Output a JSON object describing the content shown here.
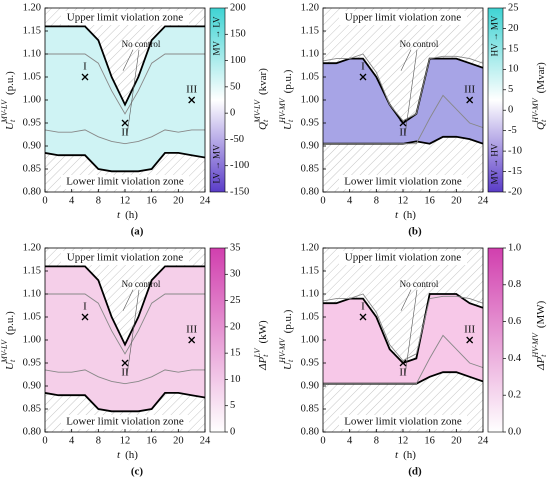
{
  "chart_data": [
    {
      "type": "line",
      "panel_label": "(a)",
      "zone_upper": "Upper limit violation zone",
      "zone_lower": "Lower limit violation zone",
      "annotation": "No control",
      "x_label": {
        "main": "t",
        "unit": "(h)"
      },
      "y_label": {
        "main": "U",
        "sub": "t",
        "sup": "MV-LV",
        "unit": "(p.u.)"
      },
      "x": [
        0,
        2,
        4,
        6,
        8,
        10,
        12,
        14,
        16,
        18,
        20,
        22,
        24
      ],
      "xlim": [
        0,
        24
      ],
      "xticks": [
        0,
        4,
        8,
        12,
        16,
        20,
        24
      ],
      "ylim": [
        0.8,
        1.2
      ],
      "yticks": [
        {
          "value": 0.8,
          "label": "0.80"
        },
        {
          "value": 0.85,
          "label": "0.85"
        },
        {
          "value": 0.9,
          "label": "0.90"
        },
        {
          "value": 0.95,
          "label": "0.95"
        },
        {
          "value": 1.0,
          "label": "1.00"
        },
        {
          "value": 1.05,
          "label": "1.05"
        },
        {
          "value": 1.1,
          "label": "1.10"
        },
        {
          "value": 1.15,
          "label": "1.15"
        },
        {
          "value": 1.2,
          "label": "1.20"
        }
      ],
      "region_color": "#bfeff0",
      "series": [
        {
          "color": "#000000",
          "width": 1.8,
          "values": [
            1.16,
            1.16,
            1.16,
            1.16,
            1.13,
            1.05,
            0.99,
            1.05,
            1.13,
            1.16,
            1.16,
            1.16,
            1.16
          ]
        },
        {
          "color": "#000000",
          "width": 1.8,
          "values": [
            0.885,
            0.88,
            0.88,
            0.88,
            0.85,
            0.845,
            0.845,
            0.845,
            0.85,
            0.885,
            0.885,
            0.88,
            0.875
          ]
        },
        {
          "color": "#888888",
          "width": 0.9,
          "values": [
            1.1,
            1.1,
            1.1,
            1.1,
            1.08,
            1.02,
            0.97,
            1.02,
            1.08,
            1.1,
            1.1,
            1.1,
            1.1
          ]
        },
        {
          "color": "#888888",
          "width": 0.9,
          "values": [
            0.935,
            0.93,
            0.93,
            0.935,
            0.92,
            0.91,
            0.905,
            0.91,
            0.92,
            0.935,
            0.93,
            0.935,
            0.935
          ]
        }
      ],
      "points": [
        {
          "label": "I",
          "x": 6,
          "y": 1.05
        },
        {
          "label": "II",
          "x": 12,
          "y": 0.95
        },
        {
          "label": "III",
          "x": 22,
          "y": 1.0
        }
      ],
      "colorbar": {
        "label": {
          "main": "Q",
          "sub": "t",
          "sup": "MV-LV",
          "unit": "(kvar)"
        },
        "clim": [
          -150,
          200
        ],
        "ticks": [
          -150,
          -100,
          -50,
          0,
          50,
          100,
          150,
          200
        ],
        "colors": [
          "#5a3cc8",
          "#ffffff",
          "#3fd3d3"
        ],
        "top_note": "MV → LV",
        "bottom_note": "LV → MV"
      }
    },
    {
      "type": "line",
      "panel_label": "(b)",
      "zone_upper": "Upper limit violation zone",
      "zone_lower": "Lower limit violation zone",
      "annotation": "No control",
      "x_label": {
        "main": "t",
        "unit": "(h)"
      },
      "y_label": {
        "main": "U",
        "sub": "t",
        "sup": "HV-MV",
        "unit": "(p.u.)"
      },
      "x": [
        0,
        2,
        4,
        6,
        8,
        10,
        12,
        14,
        16,
        18,
        20,
        22,
        24
      ],
      "xlim": [
        0,
        24
      ],
      "xticks": [
        0,
        4,
        8,
        12,
        16,
        20,
        24
      ],
      "ylim": [
        0.8,
        1.2
      ],
      "yticks": [
        {
          "value": 0.8,
          "label": "0.80"
        },
        {
          "value": 0.85,
          "label": "0.85"
        },
        {
          "value": 0.9,
          "label": "0.90"
        },
        {
          "value": 0.95,
          "label": "0.95"
        },
        {
          "value": 1.0,
          "label": "1.00"
        },
        {
          "value": 1.05,
          "label": "1.05"
        },
        {
          "value": 1.1,
          "label": "1.10"
        },
        {
          "value": 1.15,
          "label": "1.15"
        },
        {
          "value": 1.2,
          "label": "1.20"
        }
      ],
      "region_color": "#8a86de",
      "series": [
        {
          "color": "#000000",
          "width": 1.8,
          "values": [
            1.08,
            1.08,
            1.09,
            1.09,
            1.05,
            0.99,
            0.95,
            0.97,
            1.09,
            1.09,
            1.09,
            1.08,
            1.07
          ]
        },
        {
          "color": "#000000",
          "width": 1.8,
          "values": [
            0.905,
            0.905,
            0.905,
            0.905,
            0.905,
            0.905,
            0.905,
            0.91,
            0.905,
            0.92,
            0.92,
            0.915,
            0.905
          ]
        },
        {
          "color": "#888888",
          "width": 0.9,
          "values": [
            1.085,
            1.09,
            1.09,
            1.1,
            1.06,
            0.99,
            0.955,
            0.97,
            1.09,
            1.095,
            1.095,
            1.09,
            1.08
          ]
        },
        {
          "color": "#888888",
          "width": 0.9,
          "values": [
            0.905,
            0.905,
            0.905,
            0.905,
            0.905,
            0.905,
            0.905,
            0.905,
            0.96,
            1.01,
            0.98,
            0.95,
            0.94
          ]
        }
      ],
      "points": [
        {
          "label": "I",
          "x": 6,
          "y": 1.05
        },
        {
          "label": "II",
          "x": 12,
          "y": 0.95
        },
        {
          "label": "III",
          "x": 22,
          "y": 1.0
        }
      ],
      "colorbar": {
        "label": {
          "main": "Q",
          "sub": "t",
          "sup": "HV-MV",
          "unit": "(Mvar)"
        },
        "clim": [
          -20,
          25
        ],
        "ticks": [
          -20,
          -15,
          -10,
          -5,
          0,
          5,
          10,
          15,
          20,
          25
        ],
        "colors": [
          "#5a3cc8",
          "#ffffff",
          "#3fd3d3"
        ],
        "top_note": "HV → MV",
        "bottom_note": "MV → HV"
      }
    },
    {
      "type": "line",
      "panel_label": "(c)",
      "zone_upper": "Upper limit violation zone",
      "zone_lower": "Lower limit violation zone",
      "annotation": "No control",
      "x_label": {
        "main": "t",
        "unit": "(h)"
      },
      "y_label": {
        "main": "U",
        "sub": "t",
        "sup": "MV-LV",
        "unit": "(p.u.)"
      },
      "x": [
        0,
        2,
        4,
        6,
        8,
        10,
        12,
        14,
        16,
        18,
        20,
        22,
        24
      ],
      "xlim": [
        0,
        24
      ],
      "xticks": [
        0,
        4,
        8,
        12,
        16,
        20,
        24
      ],
      "ylim": [
        0.8,
        1.2
      ],
      "yticks": [
        {
          "value": 0.8,
          "label": "0.80"
        },
        {
          "value": 0.85,
          "label": "0.85"
        },
        {
          "value": 0.9,
          "label": "0.90"
        },
        {
          "value": 0.95,
          "label": "0.95"
        },
        {
          "value": 1.0,
          "label": "1.00"
        },
        {
          "value": 1.05,
          "label": "1.05"
        },
        {
          "value": 1.1,
          "label": "1.10"
        },
        {
          "value": 1.15,
          "label": "1.15"
        },
        {
          "value": 1.2,
          "label": "1.20"
        }
      ],
      "region_color": "#f2bfe2",
      "series": [
        {
          "color": "#000000",
          "width": 1.8,
          "values": [
            1.16,
            1.16,
            1.16,
            1.16,
            1.13,
            1.05,
            0.99,
            1.05,
            1.13,
            1.16,
            1.16,
            1.16,
            1.16
          ]
        },
        {
          "color": "#000000",
          "width": 1.8,
          "values": [
            0.885,
            0.88,
            0.88,
            0.88,
            0.85,
            0.845,
            0.845,
            0.845,
            0.85,
            0.885,
            0.885,
            0.88,
            0.875
          ]
        },
        {
          "color": "#888888",
          "width": 0.9,
          "values": [
            1.1,
            1.1,
            1.1,
            1.1,
            1.08,
            1.02,
            0.97,
            1.02,
            1.08,
            1.1,
            1.1,
            1.1,
            1.1
          ]
        },
        {
          "color": "#888888",
          "width": 0.9,
          "values": [
            0.935,
            0.93,
            0.93,
            0.935,
            0.92,
            0.91,
            0.905,
            0.91,
            0.92,
            0.935,
            0.93,
            0.935,
            0.935
          ]
        }
      ],
      "points": [
        {
          "label": "I",
          "x": 6,
          "y": 1.05
        },
        {
          "label": "II",
          "x": 12,
          "y": 0.95
        },
        {
          "label": "III",
          "x": 22,
          "y": 1.0
        }
      ],
      "colorbar": {
        "label": {
          "main": "ΔP",
          "sub": "t",
          "sup": "LV",
          "unit": "(kW)"
        },
        "clim": [
          0,
          35
        ],
        "ticks": [
          0,
          5,
          10,
          15,
          20,
          25,
          30,
          35
        ],
        "colors": [
          "#ffffff",
          "#d13fae"
        ]
      }
    },
    {
      "type": "line",
      "panel_label": "(d)",
      "zone_upper": "Upper limit violation zone",
      "zone_lower": "Lower limit violation zone",
      "annotation": "No control",
      "x_label": {
        "main": "t",
        "unit": "(h)"
      },
      "y_label": {
        "main": "U",
        "sub": "t",
        "sup": "HV-MV",
        "unit": "(p.u.)"
      },
      "x": [
        0,
        2,
        4,
        6,
        8,
        10,
        12,
        14,
        16,
        18,
        20,
        22,
        24
      ],
      "xlim": [
        0,
        24
      ],
      "xticks": [
        0,
        4,
        8,
        12,
        16,
        20,
        24
      ],
      "ylim": [
        0.8,
        1.2
      ],
      "yticks": [
        {
          "value": 0.8,
          "label": "0.80"
        },
        {
          "value": 0.85,
          "label": "0.85"
        },
        {
          "value": 0.9,
          "label": "0.90"
        },
        {
          "value": 0.95,
          "label": "0.95"
        },
        {
          "value": 1.0,
          "label": "1.00"
        },
        {
          "value": 1.05,
          "label": "1.05"
        },
        {
          "value": 1.1,
          "label": "1.10"
        },
        {
          "value": 1.15,
          "label": "1.15"
        },
        {
          "value": 1.2,
          "label": "1.20"
        }
      ],
      "region_color": "#f4b6e0",
      "series": [
        {
          "color": "#000000",
          "width": 1.8,
          "values": [
            1.08,
            1.08,
            1.09,
            1.09,
            1.05,
            0.98,
            0.95,
            0.96,
            1.1,
            1.1,
            1.1,
            1.08,
            1.07
          ]
        },
        {
          "color": "#000000",
          "width": 1.8,
          "values": [
            0.905,
            0.905,
            0.905,
            0.905,
            0.905,
            0.905,
            0.905,
            0.905,
            0.92,
            0.93,
            0.93,
            0.92,
            0.91
          ]
        },
        {
          "color": "#888888",
          "width": 0.9,
          "values": [
            1.085,
            1.09,
            1.09,
            1.1,
            1.06,
            0.99,
            0.955,
            0.97,
            1.09,
            1.095,
            1.095,
            1.09,
            1.08
          ]
        },
        {
          "color": "#888888",
          "width": 0.9,
          "values": [
            0.905,
            0.905,
            0.905,
            0.905,
            0.905,
            0.905,
            0.905,
            0.905,
            0.96,
            1.01,
            0.98,
            0.95,
            0.94
          ]
        }
      ],
      "points": [
        {
          "label": "I",
          "x": 6,
          "y": 1.05
        },
        {
          "label": "II",
          "x": 12,
          "y": 0.95
        },
        {
          "label": "III",
          "x": 22,
          "y": 1.0
        }
      ],
      "colorbar": {
        "label": {
          "main": "ΔP",
          "sub": "t",
          "sup": "HV-MV",
          "unit": "(MW)"
        },
        "clim": [
          0,
          1
        ],
        "ticks": [
          {
            "value": 0,
            "label": "0.0"
          },
          0.2,
          0.4,
          0.6,
          0.8,
          {
            "value": 1,
            "label": "1.0"
          }
        ],
        "colors": [
          "#ffffff",
          "#d13fae"
        ]
      }
    }
  ]
}
